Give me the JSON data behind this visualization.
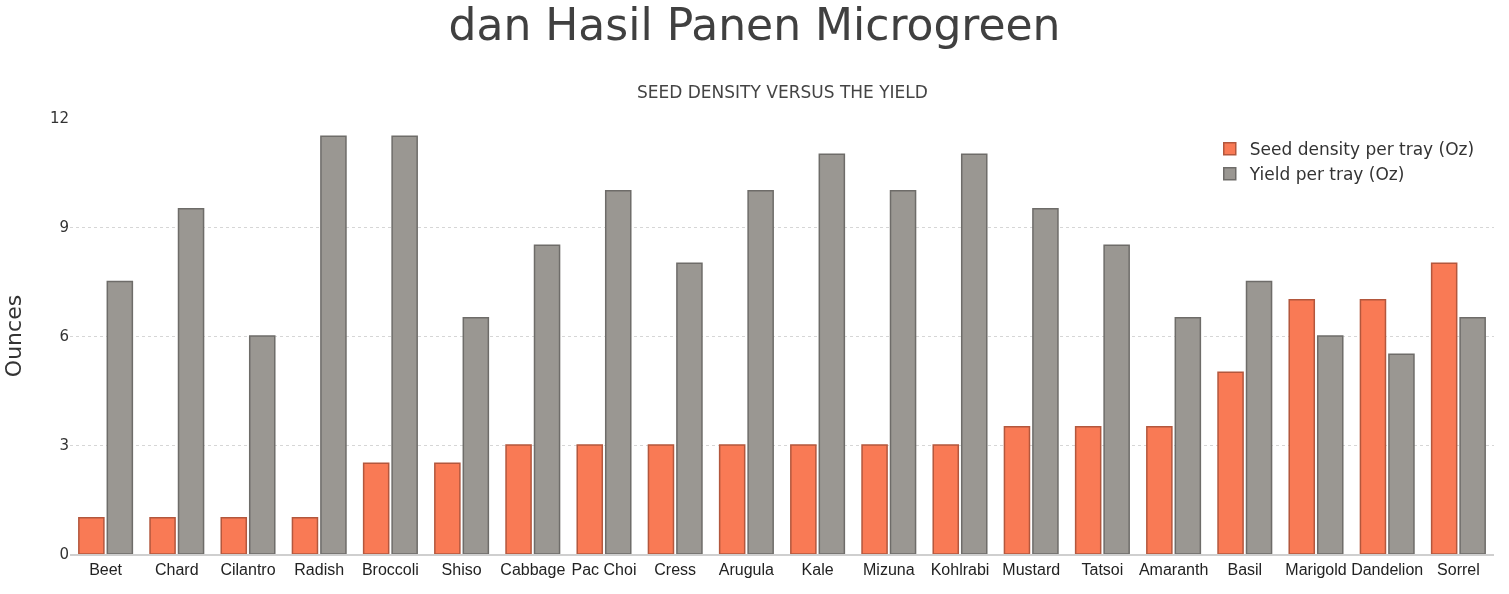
{
  "chart_data": {
    "type": "bar",
    "title": "dan Hasil Panen Microgreen",
    "subtitle": "SEED DENSITY VERSUS THE YIELD",
    "ylabel": "Ounces",
    "categories": [
      "Beet",
      "Chard",
      "Cilantro",
      "Radish",
      "Broccoli",
      "Shiso",
      "Cabbage",
      "Pac Choi",
      "Cress",
      "Arugula",
      "Kale",
      "Mizuna",
      "Kohlrabi",
      "Mustard",
      "Tatsoi",
      "Amaranth",
      "Basil",
      "Marigold",
      "Dandelion",
      "Sorrel"
    ],
    "series": [
      {
        "name": "Seed density per tray (Oz)",
        "color": "#f97a55",
        "values": [
          1,
          1,
          1,
          1,
          2.5,
          2.5,
          3,
          3,
          3,
          3,
          3,
          3,
          3,
          3.5,
          3.5,
          3.5,
          5,
          7,
          7,
          8
        ]
      },
      {
        "name": "Yield per tray (Oz)",
        "color": "#9a9792",
        "values": [
          7.5,
          9.5,
          6,
          11.5,
          11.5,
          6.5,
          8.5,
          10,
          8,
          10,
          11,
          10,
          11,
          9.5,
          8.5,
          6.5,
          7.5,
          6,
          5.5,
          6.5
        ]
      }
    ],
    "ylim": [
      0,
      12
    ],
    "yticks": [
      0,
      3,
      6,
      9,
      12
    ],
    "grid": "y",
    "legend": "top right"
  }
}
